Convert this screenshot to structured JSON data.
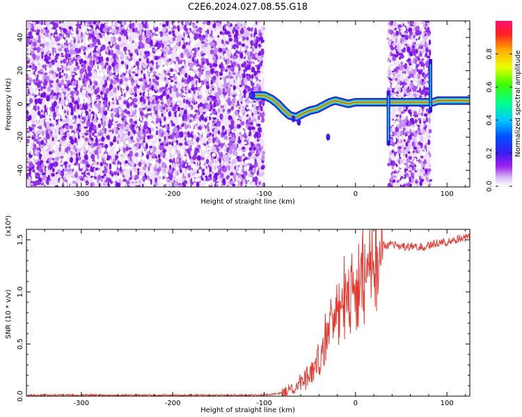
{
  "title": "C2E6.2024.027.08.55.G18",
  "colors": {
    "snr_line": "#e8382e",
    "spectro_bg": "#a020f0",
    "axis": "#000000"
  },
  "chart_data": [
    {
      "type": "heatmap",
      "name": "spectrogram",
      "xlabel": "Height of straight line (km)",
      "ylabel": "Frequency (Hz)",
      "xlim": [
        -360,
        125
      ],
      "ylim": [
        -50,
        50
      ],
      "xticks": [
        -300,
        -200,
        -100,
        0,
        100
      ],
      "xtick_labels": [
        "-300",
        "-200",
        "-100",
        "0",
        "100"
      ],
      "yticks": [
        -40,
        -20,
        0,
        20,
        40
      ],
      "ytick_labels": [
        "-40",
        "-20",
        "0",
        "20",
        "40"
      ],
      "noise_regions": [
        [
          -360,
          -100
        ],
        [
          36,
          82
        ]
      ],
      "signal_track": {
        "x": [
          -112,
          -100,
          -92,
          -85,
          -78,
          -72,
          -65,
          -58,
          -50,
          -42,
          -35,
          -28,
          -22,
          -15,
          -8,
          0,
          10,
          20,
          30,
          36,
          40,
          50,
          60,
          70,
          80,
          85,
          90,
          100,
          110,
          125
        ],
        "y": [
          5,
          5,
          3,
          0,
          -4,
          -7,
          -8,
          -6,
          -4,
          -3,
          -1,
          1,
          2,
          1,
          0,
          1,
          1,
          1,
          1,
          1,
          1,
          1,
          1,
          1,
          1,
          1,
          2,
          2,
          2,
          2
        ]
      },
      "colorbar": {
        "label": "Normalized spectral amplitude",
        "range": [
          0,
          1
        ],
        "ticks": [
          0.0,
          0.2,
          0.4,
          0.6,
          0.8
        ],
        "tick_labels": [
          "0.0",
          "0.2",
          "0.4",
          "0.6",
          "0.8"
        ]
      }
    },
    {
      "type": "line",
      "name": "snr",
      "xlabel": "Height of straight line (km)",
      "ylabel": "SNR (10 * v/v)",
      "scale_label": "(x10⁴)",
      "xlim": [
        -360,
        125
      ],
      "ylim": [
        0,
        1.6
      ],
      "xticks": [
        -300,
        -200,
        -100,
        0,
        100
      ],
      "xtick_labels": [
        "-300",
        "-200",
        "-100",
        "0",
        "100"
      ],
      "yticks": [
        0.0,
        0.5,
        1.0,
        1.5
      ],
      "ytick_labels": [
        "0.0",
        "0.5",
        "1.0",
        "1.5"
      ],
      "series": [
        {
          "name": "SNR",
          "x": [
            -360,
            -300,
            -200,
            -100,
            -80,
            -70,
            -60,
            -50,
            -40,
            -30,
            -20,
            -10,
            0,
            10,
            20,
            30,
            40,
            50,
            60,
            70,
            80,
            90,
            100,
            110,
            120,
            125
          ],
          "y": [
            0.01,
            0.01,
            0.01,
            0.01,
            0.03,
            0.07,
            0.12,
            0.2,
            0.35,
            0.6,
            0.8,
            0.95,
            1.05,
            1.2,
            1.35,
            1.45,
            1.45,
            1.43,
            1.44,
            1.43,
            1.45,
            1.47,
            1.48,
            1.5,
            1.52,
            1.53
          ]
        }
      ]
    }
  ]
}
